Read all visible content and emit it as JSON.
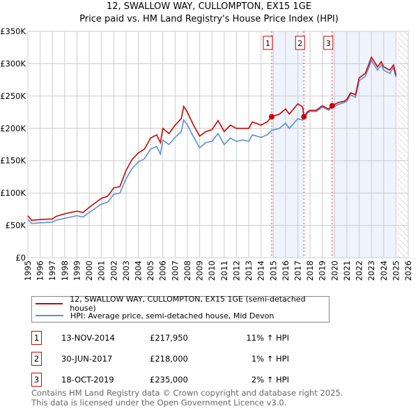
{
  "title": "12, SWALLOW WAY, CULLOMPTON, EX15 1GE",
  "subtitle": "Price paid vs. HM Land Registry's House Price Index (HPI)",
  "chart_data": {
    "type": "line",
    "xlim": [
      1995,
      2026
    ],
    "ylim": [
      0,
      350000
    ],
    "yticks": [
      {
        "v": 0,
        "label": "£0"
      },
      {
        "v": 50000,
        "label": "£50K"
      },
      {
        "v": 100000,
        "label": "£100K"
      },
      {
        "v": 150000,
        "label": "£150K"
      },
      {
        "v": 200000,
        "label": "£200K"
      },
      {
        "v": 250000,
        "label": "£250K"
      },
      {
        "v": 300000,
        "label": "£300K"
      },
      {
        "v": 350000,
        "label": "£350K"
      }
    ],
    "xticks": [
      "1995",
      "1996",
      "1997",
      "1998",
      "1999",
      "2000",
      "2001",
      "2002",
      "2003",
      "2004",
      "2005",
      "2006",
      "2007",
      "2008",
      "2009",
      "2010",
      "2011",
      "2012",
      "2013",
      "2014",
      "2015",
      "2016",
      "2017",
      "2018",
      "2019",
      "2020",
      "2021",
      "2022",
      "2023",
      "2024",
      "2025",
      "2026"
    ],
    "shaded": [
      [
        2014.87,
        2017.5
      ],
      [
        2019.8,
        2025.0
      ]
    ],
    "hatched_from": 2025.1,
    "series": [
      {
        "name": "12, SWALLOW WAY, CULLOMPTON, EX15 1GE (semi-detached house)",
        "color": "#cc0000",
        "x": [
          1995,
          1995.3,
          1996,
          1997,
          1997.3,
          1998,
          1999,
          1999.5,
          2000,
          2001,
          2001.5,
          2002,
          2002.5,
          2003,
          2003.5,
          2004,
          2004.5,
          2005,
          2005.5,
          2005.8,
          2006,
          2006.5,
          2007,
          2007.5,
          2007.7,
          2008,
          2008.5,
          2009,
          2009.5,
          2010,
          2010.5,
          2011,
          2011.5,
          2012,
          2012.5,
          2013,
          2013.3,
          2014,
          2014.5,
          2014.87,
          2015.5,
          2016,
          2016.3,
          2017,
          2017.4,
          2017.5,
          2017.8,
          2018,
          2018.5,
          2019,
          2019.5,
          2019.8,
          2020.3,
          2020.8,
          2021,
          2021.3,
          2021.7,
          2022,
          2022.5,
          2023,
          2023.5,
          2023.8,
          2024,
          2024.5,
          2024.8,
          2025
        ],
        "values": [
          65000,
          58000,
          59000,
          60000,
          64000,
          68000,
          72000,
          70000,
          78000,
          92000,
          95000,
          108000,
          110000,
          135000,
          152000,
          162000,
          168000,
          185000,
          190000,
          178000,
          200000,
          192000,
          205000,
          215000,
          234000,
          225000,
          205000,
          188000,
          195000,
          198000,
          212000,
          195000,
          205000,
          200000,
          200000,
          200000,
          210000,
          205000,
          210000,
          217950,
          222000,
          230000,
          222000,
          238000,
          233000,
          218000,
          226000,
          228000,
          228000,
          235000,
          230000,
          235000,
          240000,
          242000,
          245000,
          255000,
          252000,
          278000,
          285000,
          310000,
          295000,
          303000,
          295000,
          290000,
          298000,
          282000
        ]
      },
      {
        "name": "HPI: Average price, semi-detached house, Mid Devon",
        "color": "#5b8fd4",
        "x": [
          1995,
          1995.3,
          1996,
          1997,
          1997.3,
          1998,
          1999,
          1999.5,
          2000,
          2001,
          2001.5,
          2002,
          2002.5,
          2003,
          2003.5,
          2004,
          2004.5,
          2005,
          2005.5,
          2005.8,
          2006,
          2006.5,
          2007,
          2007.5,
          2007.7,
          2008,
          2008.5,
          2009,
          2009.5,
          2010,
          2010.5,
          2011,
          2011.5,
          2012,
          2012.5,
          2013,
          2013.3,
          2014,
          2014.5,
          2014.87,
          2015.5,
          2016,
          2016.3,
          2017,
          2017.4,
          2017.5,
          2017.8,
          2018,
          2018.5,
          2019,
          2019.5,
          2019.8,
          2020.3,
          2020.8,
          2021,
          2021.3,
          2021.7,
          2022,
          2022.5,
          2023,
          2023.5,
          2023.8,
          2024,
          2024.5,
          2024.8,
          2025
        ],
        "values": [
          59000,
          53000,
          54000,
          55000,
          58000,
          61000,
          65000,
          63000,
          70000,
          83000,
          86000,
          98000,
          100000,
          122000,
          138000,
          148000,
          153000,
          168000,
          172000,
          160000,
          182000,
          175000,
          186000,
          195000,
          213000,
          205000,
          187000,
          170000,
          178000,
          180000,
          192000,
          175000,
          185000,
          180000,
          182000,
          180000,
          190000,
          186000,
          190000,
          197000,
          200000,
          208000,
          200000,
          215000,
          213000,
          214000,
          224000,
          226000,
          226000,
          233000,
          228000,
          232000,
          237000,
          240000,
          242000,
          252000,
          248000,
          274000,
          280000,
          305000,
          290000,
          298000,
          290000,
          285000,
          294000,
          279000
        ]
      }
    ],
    "sales": [
      {
        "label": "1",
        "x": 2014.87,
        "y": 217950
      },
      {
        "label": "2",
        "x": 2017.5,
        "y": 218000
      },
      {
        "label": "3",
        "x": 2019.8,
        "y": 235000
      }
    ]
  },
  "legend": {
    "red": "12, SWALLOW WAY, CULLOMPTON, EX15 1GE (semi-detached house)",
    "blue": "HPI: Average price, semi-detached house, Mid Devon"
  },
  "transactions": [
    {
      "n": "1",
      "date": "13-NOV-2014",
      "price": "£217,950",
      "hpi": "11% ↑ HPI"
    },
    {
      "n": "2",
      "date": "30-JUN-2017",
      "price": "£218,000",
      "hpi": "1% ↑ HPI"
    },
    {
      "n": "3",
      "date": "18-OCT-2019",
      "price": "£235,000",
      "hpi": "2% ↑ HPI"
    }
  ],
  "footer": [
    "Contains HM Land Registry data © Crown copyright and database right 2025.",
    "This data is licensed under the Open Government Licence v3.0."
  ]
}
